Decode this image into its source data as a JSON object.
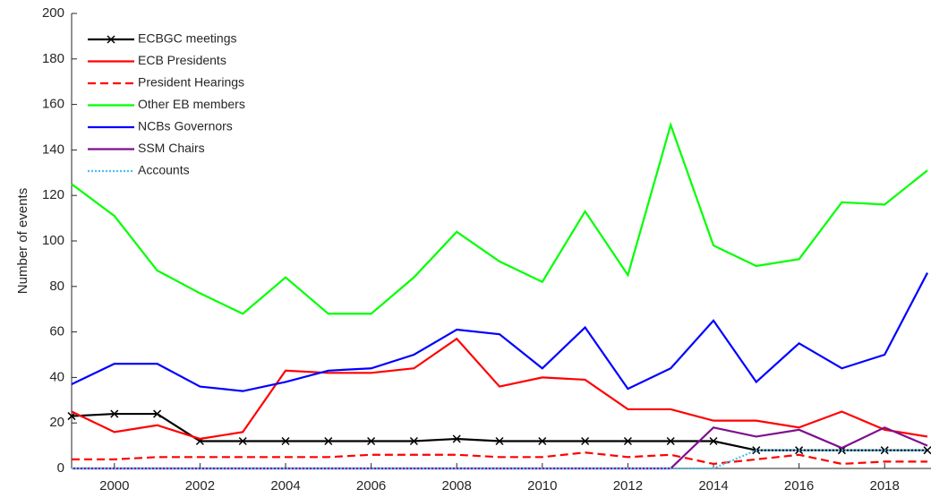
{
  "chart_data": {
    "type": "line",
    "ylabel": "Number of events",
    "x": [
      1999,
      2000,
      2001,
      2002,
      2003,
      2004,
      2005,
      2006,
      2007,
      2008,
      2009,
      2010,
      2011,
      2012,
      2013,
      2014,
      2015,
      2016,
      2017,
      2018,
      2019
    ],
    "xlim": [
      1999,
      2019
    ],
    "xticks": [
      2000,
      2002,
      2004,
      2006,
      2008,
      2010,
      2012,
      2014,
      2016,
      2018
    ],
    "ylim": [
      0,
      200
    ],
    "yticks": [
      0,
      20,
      40,
      60,
      80,
      100,
      120,
      140,
      160,
      180,
      200
    ],
    "legend": "upper left",
    "series": [
      {
        "name": "ECBGC meetings",
        "color": "#000000",
        "linestyle": "solid",
        "marker": "x",
        "values": [
          23,
          24,
          24,
          12,
          12,
          12,
          12,
          12,
          12,
          13,
          12,
          12,
          12,
          12,
          12,
          12,
          8,
          8,
          8,
          8,
          8
        ]
      },
      {
        "name": "ECB Presidents",
        "color": "#ff0000",
        "linestyle": "solid",
        "values": [
          25,
          16,
          19,
          13,
          16,
          43,
          42,
          42,
          44,
          57,
          36,
          40,
          39,
          26,
          26,
          21,
          21,
          18,
          25,
          17,
          14
        ]
      },
      {
        "name": "President Hearings",
        "color": "#ff0000",
        "linestyle": "dashed",
        "values": [
          4,
          4,
          5,
          5,
          5,
          5,
          5,
          6,
          6,
          6,
          5,
          5,
          7,
          5,
          6,
          2,
          4,
          6,
          2,
          3,
          3
        ]
      },
      {
        "name": "Other EB members",
        "color": "#00ff00",
        "linestyle": "solid",
        "values": [
          125,
          111,
          87,
          77,
          68,
          84,
          68,
          68,
          84,
          104,
          91,
          82,
          113,
          85,
          151,
          98,
          89,
          92,
          117,
          116,
          131
        ]
      },
      {
        "name": "NCBs Governors",
        "color": "#0000ff",
        "linestyle": "solid",
        "values": [
          37,
          46,
          46,
          36,
          34,
          38,
          43,
          44,
          50,
          61,
          59,
          44,
          62,
          35,
          44,
          65,
          38,
          55,
          44,
          50,
          86
        ]
      },
      {
        "name": "SSM Chairs",
        "color": "#7e0f8e",
        "linestyle": "solid",
        "values": [
          0,
          0,
          0,
          0,
          0,
          0,
          0,
          0,
          0,
          0,
          0,
          0,
          0,
          0,
          0,
          18,
          14,
          17,
          9,
          18,
          10
        ]
      },
      {
        "name": "Accounts",
        "color": "#4dbeee",
        "linestyle": "dotted",
        "values": [
          0,
          0,
          0,
          0,
          0,
          0,
          0,
          0,
          0,
          0,
          0,
          0,
          0,
          0,
          0,
          0,
          8,
          8,
          8,
          8,
          8
        ]
      }
    ]
  }
}
